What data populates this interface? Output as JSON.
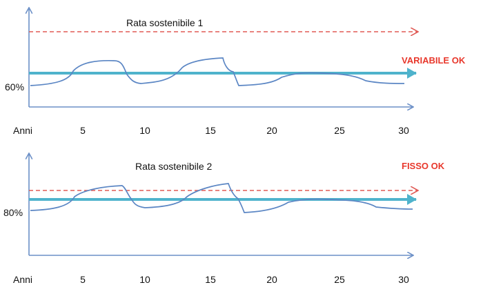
{
  "colors": {
    "axis": "#6b8fc7",
    "threshold_line": "#e05a55",
    "fixed_rate_arrow": "#4fb3cc",
    "variable_curve": "#5b86c4",
    "ok_text": "#e8372b"
  },
  "panels": [
    {
      "threshold_label": "Rata sostenibile 1",
      "level_label": "60%",
      "status_label": "VARIABILE OK",
      "x_title": "Anni",
      "x_ticks": [
        "5",
        "10",
        "15",
        "20",
        "25",
        "30"
      ]
    },
    {
      "threshold_label": "Rata sostenibile 2",
      "level_label": "80%",
      "status_label": "FISSO OK",
      "x_title": "Anni",
      "x_ticks": [
        "5",
        "10",
        "15",
        "20",
        "25",
        "30"
      ]
    }
  ]
}
